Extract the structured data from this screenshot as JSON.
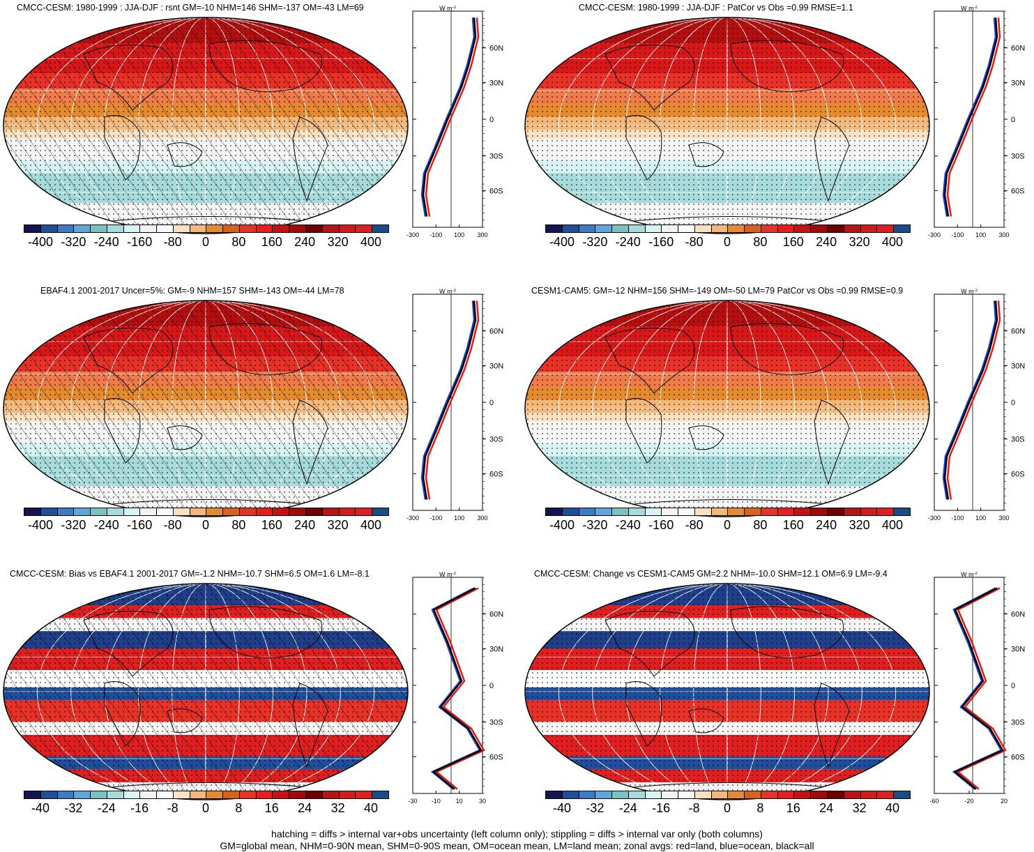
{
  "panels": [
    {
      "title": "CMCC-CESM: 1980-1999 : JJA-DJF : rsnt GM=-10 NHM=146 SHM=-137 OM=-43 LM=69",
      "hatch": true,
      "kind": "mean",
      "ticks": [
        "-300",
        "-100",
        "100",
        "300"
      ]
    },
    {
      "title": "CMCC-CESM: 1980-1999 : JJA-DJF : PatCor vs Obs =0.99 RMSE=1.1",
      "hatch": false,
      "kind": "mean",
      "ticks": [
        "-300",
        "-100",
        "100",
        "300"
      ]
    },
    {
      "title": "EBAF4.1 2001-2017 Uncer=5%: GM=-9 NHM=157 SHM=-143 OM=-44 LM=78",
      "hatch": true,
      "kind": "mean",
      "ticks": [
        "-300",
        "-100",
        "100",
        "300"
      ]
    },
    {
      "title": "CESM1-CAM5: GM=-12 NHM=156 SHM=-149 OM=-50 LM=79 PatCor vs Obs =0.99 RMSE=0.9",
      "hatch": false,
      "kind": "mean",
      "ticks": [
        "-300",
        "-100",
        "100",
        "300"
      ]
    },
    {
      "title": "CMCC-CESM: Bias vs EBAF4.1 2001-2017 GM=-1.2 NHM=-10.7 SHM=6.5 OM=1.6 LM=-8.1",
      "hatch": true,
      "kind": "diff",
      "ticks": [
        "-30",
        "-10",
        "10",
        "30"
      ]
    },
    {
      "title": "CMCC-CESM: Change vs CESM1-CAM5 GM=2.2 NHM=-10.0 SHM=12.1 OM=6.9 LM=-9.4",
      "hatch": false,
      "kind": "diff",
      "ticks": [
        "-60",
        "-20",
        "20"
      ]
    }
  ],
  "zonal_unit": "W m",
  "zonal_unit_sup": "-2",
  "lat_labels": [
    "60N",
    "30N",
    "0",
    "30S",
    "60S"
  ],
  "colorbar_mean_labels": [
    "-400",
    "-320",
    "-240",
    "-160",
    "-80",
    "0",
    "80",
    "160",
    "240",
    "320",
    "400"
  ],
  "colorbar_diff_labels": [
    "-40",
    "-32",
    "-24",
    "-16",
    "-8",
    "0",
    "8",
    "16",
    "24",
    "32",
    "40"
  ],
  "colorbar_colors": [
    "#141450",
    "#1f4f9a",
    "#3a7cc7",
    "#5fa6dc",
    "#79c2c4",
    "#a7dbdb",
    "#d7f3f3",
    "#f2f2f2",
    "#f9f9f9",
    "#fbe1c0",
    "#f4b77a",
    "#e68a2e",
    "#d9621a",
    "#e83228",
    "#ea1c1c",
    "#c81010",
    "#a50a0a",
    "#6e0000",
    "#b81414",
    "#d41b1b",
    "#e02020",
    "#1a4c88"
  ],
  "footer_line1": "hatching = diffs > internal var+obs uncertainty (left column only); stippling = diffs > internal var only (both columns)",
  "footer_line2": "GM=global mean, NHM=0-90N mean, SHM=0-90S mean, OM=ocean mean, LM=land mean; zonal avgs: red=land, blue=ocean, black=all"
}
